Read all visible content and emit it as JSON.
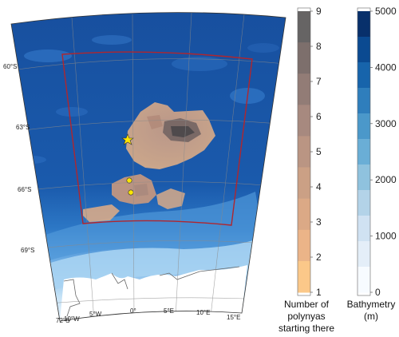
{
  "map": {
    "lat_labels": [
      "60°S",
      "63°S",
      "66°S",
      "69°S",
      "72°S"
    ],
    "lon_labels": [
      "10°W",
      "5°W",
      "0°",
      "5°E",
      "10°E",
      "15°E"
    ],
    "colors": {
      "deep_ocean": "#0d3f8f",
      "ocean_mid": "#1c5cb0",
      "shelf": "#8ec3ea",
      "shallow": "#d7ebfa",
      "land": "#ffffff",
      "box_outline": "#b0262e",
      "marker": "#ffe600"
    },
    "markers": [
      {
        "name": "site-a",
        "lon": "-1.2",
        "lat": "-64.2"
      },
      {
        "name": "site-b",
        "lon": "-0.5",
        "lat": "-65.9"
      },
      {
        "name": "site-c",
        "lon": "-0.4",
        "lat": "-66.4"
      }
    ]
  },
  "colorbars": {
    "polynya": {
      "ticks": [
        "9",
        "8",
        "7",
        "6",
        "5",
        "4",
        "3",
        "2",
        "1"
      ],
      "title_lines": [
        "Number of",
        "polynyas",
        "starting there"
      ],
      "colors": [
        "#666464",
        "#7d6f6c",
        "#927c76",
        "#a7897f",
        "#ba9583",
        "#cba085",
        "#dba986",
        "#ebb488",
        "#fbc889"
      ]
    },
    "bathymetry": {
      "ticks": [
        "5000",
        "4000",
        "3000",
        "2000",
        "1000",
        "0"
      ],
      "title_lines": [
        "Bathymetry",
        "(m)"
      ],
      "colors": [
        "#08306b",
        "#0b4a91",
        "#1764ab",
        "#2f7ebc",
        "#4b98ca",
        "#6aaed6",
        "#8fc2de",
        "#b3d3e8",
        "#d0e2f2",
        "#e4eef8",
        "#f7fbff"
      ]
    }
  }
}
